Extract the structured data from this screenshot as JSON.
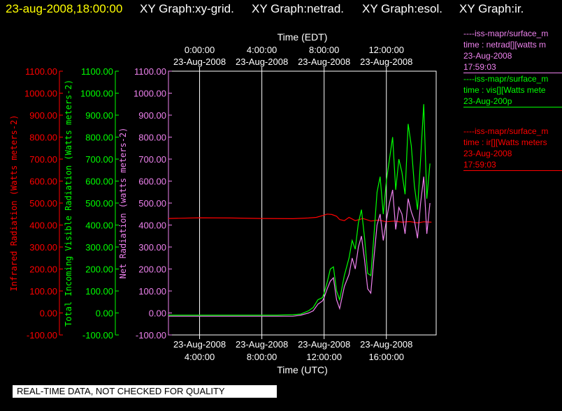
{
  "header": {
    "timestamp": "23-aug-2008,18:00:00",
    "tabs": [
      "XY Graph:xy-grid.",
      "XY Graph:netrad.",
      "XY Graph:esol.",
      "XY Graph:ir."
    ],
    "timestamp_color": "#ffff00",
    "tab_color": "#ffffff"
  },
  "notice": "REAL-TIME DATA, NOT CHECKED FOR QUALITY",
  "legend": [
    {
      "lines": [
        "----iss-mapr/surface_m",
        "time : netrad[][watts m",
        "23-Aug-2008",
        "17:59:03"
      ],
      "color": "#ee82ee"
    },
    {
      "lines": [
        "----iss-mapr/surface_m",
        "time : vis[][Watts mete",
        "23-Aug-200p"
      ],
      "color": "#00ff00"
    },
    {
      "lines": [
        "----iss-mapr/surface_m",
        "time : ir[][Watts meters",
        "23-Aug-2008",
        "17:59:03"
      ],
      "color": "#ff0000"
    }
  ],
  "chart_data": {
    "type": "line",
    "x_units": "hours UTC from 23-Aug-2008 00:00",
    "xlim": [
      2,
      19.2
    ],
    "ylim": [
      -100,
      1100
    ],
    "grid": true,
    "x_bottom_title": "Time (UTC)",
    "x_top_title": "Time (EDT)",
    "x_bottom_ticks": [
      {
        "at": 4,
        "line1": "23-Aug-2008",
        "line2": "4:00:00"
      },
      {
        "at": 8,
        "line1": "23-Aug-2008",
        "line2": "8:00:00"
      },
      {
        "at": 12,
        "line1": "23-Aug-2008",
        "line2": "12:00:00"
      },
      {
        "at": 16,
        "line1": "23-Aug-2008",
        "line2": "16:00:00"
      }
    ],
    "x_top_ticks": [
      {
        "at": 4,
        "line1": "0:00:00",
        "line2": "23-Aug-2008"
      },
      {
        "at": 8,
        "line1": "4:00:00",
        "line2": "23-Aug-2008"
      },
      {
        "at": 12,
        "line1": "8:00:00",
        "line2": "23-Aug-2008"
      },
      {
        "at": 16,
        "line1": "12:00:00",
        "line2": "23-Aug-2008"
      }
    ],
    "y_axes": [
      {
        "label": "Infrared Radiation (Watts meters-2)",
        "color": "#ff0000",
        "ticks": [
          "1100.00",
          "1000.00",
          "900.00",
          "800.00",
          "700.00",
          "600.00",
          "500.00",
          "400.00",
          "300.00",
          "200.00",
          "100.00",
          "0.00",
          "-100.00"
        ]
      },
      {
        "label": "Total Incoming Visible Radiation (Watts meters-2)",
        "color": "#00ff00",
        "ticks": [
          "1100.00",
          "1000.00",
          "900.00",
          "800.00",
          "700.00",
          "600.00",
          "500.00",
          "400.00",
          "300.00",
          "200.00",
          "100.00",
          "0.00",
          "-100.00"
        ]
      },
      {
        "label": "Net Radiation (watts meters-2)",
        "color": "#ee82ee",
        "ticks": [
          "1100.00",
          "1000.00",
          "900.00",
          "800.00",
          "700.00",
          "600.00",
          "500.00",
          "400.00",
          "300.00",
          "200.00",
          "100.00",
          "0.00",
          "-100.00"
        ]
      }
    ],
    "series": [
      {
        "color": "#ff0000",
        "points": [
          [
            2,
            430
          ],
          [
            4,
            433
          ],
          [
            6,
            432
          ],
          [
            8,
            430
          ],
          [
            10,
            429
          ],
          [
            11,
            432
          ],
          [
            11.5,
            435
          ],
          [
            12,
            445
          ],
          [
            12.2,
            450
          ],
          [
            12.5,
            448
          ],
          [
            12.8,
            440
          ],
          [
            13,
            425
          ],
          [
            13.3,
            420
          ],
          [
            13.6,
            435
          ],
          [
            14,
            420
          ],
          [
            14.5,
            430
          ],
          [
            15,
            418
          ],
          [
            15.5,
            423
          ],
          [
            16,
            415
          ],
          [
            16.5,
            418
          ],
          [
            17,
            413
          ],
          [
            17.5,
            416
          ],
          [
            18,
            410
          ],
          [
            18.4,
            415
          ],
          [
            18.9,
            413
          ]
        ]
      },
      {
        "color": "#00ff00",
        "points": [
          [
            2,
            -10
          ],
          [
            4,
            -10
          ],
          [
            6,
            -10
          ],
          [
            8,
            -10
          ],
          [
            9,
            -10
          ],
          [
            10,
            -8
          ],
          [
            10.5,
            -5
          ],
          [
            11,
            10
          ],
          [
            11.3,
            25
          ],
          [
            11.6,
            60
          ],
          [
            11.9,
            70
          ],
          [
            12,
            90
          ],
          [
            12.2,
            140
          ],
          [
            12.4,
            200
          ],
          [
            12.6,
            210
          ],
          [
            12.8,
            100
          ],
          [
            13,
            60
          ],
          [
            13.3,
            170
          ],
          [
            13.6,
            250
          ],
          [
            13.8,
            330
          ],
          [
            14,
            290
          ],
          [
            14.2,
            410
          ],
          [
            14.4,
            470
          ],
          [
            14.6,
            340
          ],
          [
            14.8,
            180
          ],
          [
            15,
            170
          ],
          [
            15.2,
            350
          ],
          [
            15.4,
            550
          ],
          [
            15.6,
            620
          ],
          [
            15.8,
            450
          ],
          [
            16,
            600
          ],
          [
            16.2,
            700
          ],
          [
            16.4,
            800
          ],
          [
            16.6,
            560
          ],
          [
            16.8,
            700
          ],
          [
            17,
            640
          ],
          [
            17.2,
            540
          ],
          [
            17.4,
            860
          ],
          [
            17.6,
            760
          ],
          [
            17.8,
            580
          ],
          [
            18,
            470
          ],
          [
            18.2,
            700
          ],
          [
            18.4,
            950
          ],
          [
            18.6,
            520
          ],
          [
            18.8,
            680
          ]
        ]
      },
      {
        "color": "#ee82ee",
        "points": [
          [
            2,
            -15
          ],
          [
            4,
            -15
          ],
          [
            6,
            -15
          ],
          [
            8,
            -15
          ],
          [
            9,
            -15
          ],
          [
            10,
            -15
          ],
          [
            10.5,
            -10
          ],
          [
            11,
            0
          ],
          [
            11.3,
            10
          ],
          [
            11.6,
            40
          ],
          [
            11.9,
            55
          ],
          [
            12,
            70
          ],
          [
            12.2,
            110
          ],
          [
            12.4,
            145
          ],
          [
            12.6,
            160
          ],
          [
            12.8,
            60
          ],
          [
            13,
            20
          ],
          [
            13.3,
            120
          ],
          [
            13.6,
            175
          ],
          [
            13.8,
            250
          ],
          [
            14,
            200
          ],
          [
            14.2,
            300
          ],
          [
            14.4,
            350
          ],
          [
            14.6,
            240
          ],
          [
            14.8,
            110
          ],
          [
            15,
            90
          ],
          [
            15.2,
            250
          ],
          [
            15.4,
            400
          ],
          [
            15.6,
            450
          ],
          [
            15.8,
            330
          ],
          [
            16,
            420
          ],
          [
            16.2,
            500
          ],
          [
            16.4,
            560
          ],
          [
            16.6,
            380
          ],
          [
            16.8,
            480
          ],
          [
            17,
            450
          ],
          [
            17.2,
            360
          ],
          [
            17.4,
            520
          ],
          [
            17.6,
            460
          ],
          [
            17.8,
            420
          ],
          [
            18,
            340
          ],
          [
            18.2,
            500
          ],
          [
            18.4,
            620
          ],
          [
            18.6,
            360
          ],
          [
            18.8,
            500
          ]
        ]
      }
    ]
  }
}
